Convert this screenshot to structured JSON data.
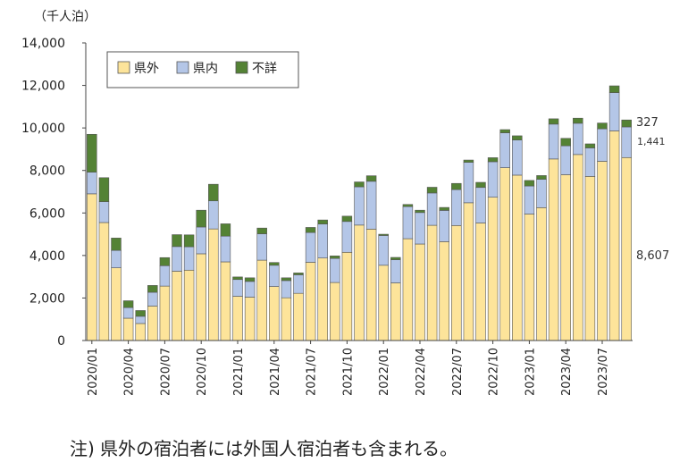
{
  "unit_label": "（千人泊）",
  "note": "注) 県外の宿泊者には外国人宿泊者も含まれる。",
  "colors": {
    "県外": "#fde49a",
    "県内": "#b4c6e7",
    "不詳": "#548235",
    "edge": "#555555"
  },
  "chart_data": {
    "type": "bar",
    "stacked": true,
    "ylim": [
      0,
      14000
    ],
    "yticks": [
      0,
      2000,
      4000,
      6000,
      8000,
      10000,
      12000,
      14000
    ],
    "ytick_labels": [
      "0",
      "2,000",
      "4,000",
      "6,000",
      "8,000",
      "10,000",
      "12,000",
      "14,000"
    ],
    "x_tick_labels": [
      "2020/01",
      "2020/04",
      "2020/07",
      "2020/10",
      "2021/01",
      "2021/04",
      "2021/07",
      "2021/10",
      "2022/01",
      "2022/04",
      "2022/07",
      "2022/10",
      "2023/01",
      "2023/04",
      "2023/07"
    ],
    "legend_position": "top-left",
    "categories": [
      "2020/01",
      "2020/02",
      "2020/03",
      "2020/04",
      "2020/05",
      "2020/06",
      "2020/07",
      "2020/08",
      "2020/09",
      "2020/10",
      "2020/11",
      "2020/12",
      "2021/01",
      "2021/02",
      "2021/03",
      "2021/04",
      "2021/05",
      "2021/06",
      "2021/07",
      "2021/08",
      "2021/09",
      "2021/10",
      "2021/11",
      "2021/12",
      "2022/01",
      "2022/02",
      "2022/03",
      "2022/04",
      "2022/05",
      "2022/06",
      "2022/07",
      "2022/08",
      "2022/09",
      "2022/10",
      "2022/11",
      "2022/12",
      "2023/01",
      "2023/02",
      "2023/03",
      "2023/04",
      "2023/05",
      "2023/06",
      "2023/07",
      "2023/08",
      "2023/09"
    ],
    "series": [
      {
        "name": "県外",
        "values": [
          6900,
          5550,
          3420,
          1050,
          800,
          1620,
          2560,
          3260,
          3310,
          4080,
          5250,
          3700,
          2080,
          2040,
          3780,
          2540,
          2010,
          2220,
          3680,
          3880,
          2730,
          4150,
          5430,
          5240,
          3540,
          2710,
          4790,
          4540,
          5420,
          4650,
          5410,
          6480,
          5530,
          6740,
          8130,
          7780,
          5950,
          6250,
          8540,
          7800,
          8750,
          7720,
          8430,
          9860,
          8607
        ]
      },
      {
        "name": "県内",
        "values": [
          1020,
          980,
          820,
          500,
          340,
          650,
          960,
          1160,
          1100,
          1260,
          1320,
          1210,
          790,
          740,
          1240,
          1000,
          810,
          870,
          1400,
          1600,
          1130,
          1450,
          1800,
          2250,
          1400,
          1090,
          1510,
          1480,
          1520,
          1470,
          1690,
          1900,
          1670,
          1670,
          1640,
          1650,
          1320,
          1330,
          1640,
          1360,
          1470,
          1340,
          1530,
          1800,
          1441
        ]
      },
      {
        "name": "不詳",
        "values": [
          1780,
          1130,
          580,
          320,
          270,
          320,
          380,
          560,
          560,
          790,
          780,
          580,
          120,
          170,
          270,
          130,
          130,
          90,
          240,
          190,
          120,
          250,
          230,
          260,
          60,
          110,
          100,
          110,
          270,
          140,
          290,
          110,
          240,
          190,
          150,
          200,
          260,
          180,
          250,
          350,
          240,
          190,
          270,
          320,
          327
        ]
      }
    ],
    "annotations": [
      "327",
      "1,441",
      "8,607"
    ]
  }
}
